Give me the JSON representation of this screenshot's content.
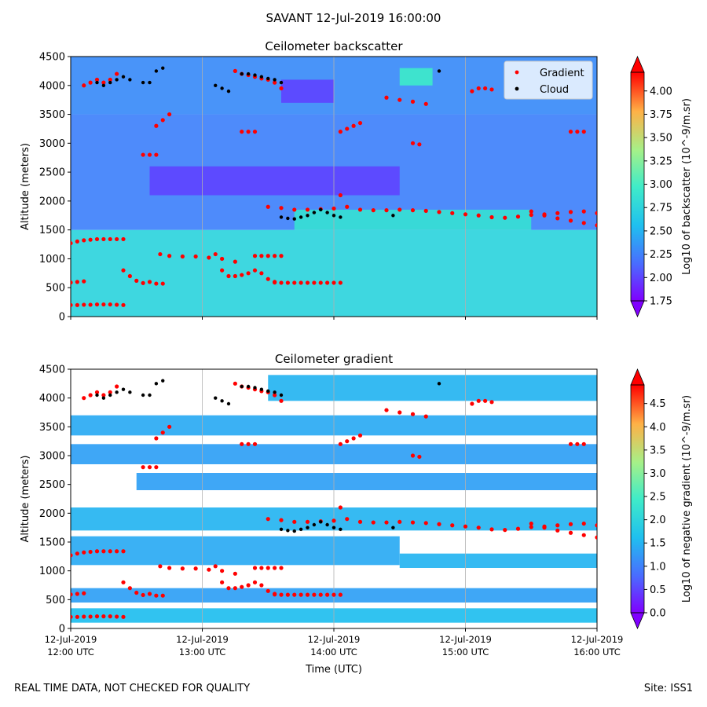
{
  "figure": {
    "suptitle": "SAVANT 12-Jul-2019 16:00:00",
    "footer_left": "REAL TIME DATA, NOT CHECKED FOR QUALITY",
    "footer_right": "Site: ISS1"
  },
  "colors": {
    "gradient_marker": "#ff0000",
    "cloud_marker": "#000000",
    "gridline": "#b0b0b0"
  },
  "chart_data": [
    {
      "type": "heatmap",
      "title": "Ceilometer backscatter",
      "xlabel": "",
      "ylabel": "Altitude (meters)",
      "xlim": [
        0,
        4
      ],
      "ylim": [
        0,
        4500
      ],
      "x_ticks": [
        0,
        1,
        2,
        3,
        4
      ],
      "x_tick_labels": [],
      "y_ticks": [
        0,
        500,
        1000,
        1500,
        2000,
        2500,
        3000,
        3500,
        4000,
        4500
      ],
      "y_tick_labels": [
        "0",
        "500",
        "1000",
        "1500",
        "2000",
        "2500",
        "3000",
        "3500",
        "4000",
        "4500"
      ],
      "grid": "vertical",
      "colorbar": {
        "label": "Log10 of backscatter (10^-9/m.sr)",
        "range": [
          1.75,
          4.2
        ],
        "ticks": [
          1.75,
          2.0,
          2.25,
          2.5,
          2.75,
          3.0,
          3.25,
          3.5,
          3.75,
          4.0
        ],
        "tick_labels": [
          "1.75",
          "2.00",
          "2.25",
          "2.50",
          "2.75",
          "3.00",
          "3.25",
          "3.50",
          "3.75",
          "4.00"
        ],
        "extend": "both"
      },
      "legend": {
        "placement": "top-right",
        "entries": [
          {
            "label": "Gradient",
            "color": "#ff0000"
          },
          {
            "label": "Cloud",
            "color": "#000000"
          }
        ]
      },
      "background_fields": [
        {
          "x": [
            0,
            4
          ],
          "y": [
            0,
            1500
          ],
          "value": 2.75
        },
        {
          "x": [
            0,
            4
          ],
          "y": [
            1500,
            3500
          ],
          "value": 2.25
        },
        {
          "x": [
            0,
            4
          ],
          "y": [
            3500,
            4500
          ],
          "value": 2.3
        },
        {
          "x": [
            2.5,
            2.75
          ],
          "y": [
            4000,
            4300
          ],
          "value": 2.95
        },
        {
          "x": [
            1.7,
            3.5
          ],
          "y": [
            1500,
            1850
          ],
          "value": 2.85
        },
        {
          "x": [
            0.6,
            2.5
          ],
          "y": [
            2100,
            2600
          ],
          "value": 2.0
        },
        {
          "x": [
            1.6,
            2.0
          ],
          "y": [
            3700,
            4100
          ],
          "value": 2.0
        }
      ],
      "series": [
        {
          "name": "Gradient",
          "kind": "points",
          "color": "#ff0000",
          "segments": [
            {
              "x": [
                0.0,
                0.05,
                0.1,
                0.15,
                0.2,
                0.25,
                0.3,
                0.35,
                0.4
              ],
              "y": [
                200,
                200,
                205,
                205,
                210,
                210,
                210,
                205,
                200
              ]
            },
            {
              "x": [
                0.0,
                0.05,
                0.1
              ],
              "y": [
                590,
                600,
                610
              ]
            },
            {
              "x": [
                0.0,
                0.05,
                0.1,
                0.15,
                0.2,
                0.25,
                0.3,
                0.35,
                0.4
              ],
              "y": [
                1270,
                1300,
                1320,
                1330,
                1340,
                1340,
                1340,
                1340,
                1340
              ]
            },
            {
              "x": [
                0.4,
                0.45,
                0.5,
                0.55,
                0.6,
                0.65,
                0.7
              ],
              "y": [
                800,
                700,
                620,
                580,
                600,
                570,
                570
              ]
            },
            {
              "x": [
                0.68,
                0.75,
                0.85,
                0.95,
                1.05,
                1.15,
                1.25
              ],
              "y": [
                1080,
                1050,
                1040,
                1040,
                1020,
                1000,
                950
              ]
            },
            {
              "x": [
                1.1,
                1.15,
                1.2,
                1.25,
                1.3,
                1.35,
                1.4,
                1.45,
                1.5,
                1.55
              ],
              "y": [
                1080,
                800,
                700,
                700,
                720,
                750,
                800,
                750,
                650,
                600
              ]
            },
            {
              "x": [
                1.55,
                1.6,
                1.65,
                1.7,
                1.75,
                1.8,
                1.85,
                1.9,
                1.95,
                2.0,
                2.05
              ],
              "y": [
                590,
                585,
                585,
                585,
                585,
                585,
                585,
                585,
                585,
                585,
                585
              ]
            },
            {
              "x": [
                1.4,
                1.45,
                1.5,
                1.55,
                1.6
              ],
              "y": [
                1050,
                1050,
                1050,
                1050,
                1050
              ]
            },
            {
              "x": [
                1.3,
                1.35,
                1.4
              ],
              "y": [
                3200,
                3200,
                3200
              ]
            },
            {
              "x": [
                0.55,
                0.6,
                0.65
              ],
              "y": [
                2800,
                2800,
                2800
              ]
            },
            {
              "x": [
                0.65,
                0.7,
                0.75
              ],
              "y": [
                3300,
                3400,
                3500
              ]
            },
            {
              "x": [
                1.5,
                1.6,
                1.7,
                1.8,
                1.9,
                2.0,
                2.05,
                2.1,
                2.2,
                2.3,
                2.4,
                2.5,
                2.6,
                2.7,
                2.8,
                2.9,
                3.0,
                3.1,
                3.2,
                3.3,
                3.4,
                3.5,
                3.6,
                3.7,
                3.8,
                3.9,
                4.0
              ],
              "y": [
                1900,
                1880,
                1850,
                1850,
                1860,
                1870,
                2100,
                1900,
                1850,
                1840,
                1840,
                1850,
                1840,
                1830,
                1810,
                1790,
                1770,
                1750,
                1720,
                1710,
                1730,
                1760,
                1770,
                1790,
                1810,
                1820,
                1790
              ]
            },
            {
              "x": [
                3.5,
                3.6,
                3.7,
                3.8,
                3.9,
                4.0
              ],
              "y": [
                1820,
                1750,
                1700,
                1660,
                1620,
                1580
              ]
            },
            {
              "x": [
                2.05,
                2.1,
                2.15,
                2.2
              ],
              "y": [
                3200,
                3250,
                3300,
                3350
              ]
            },
            {
              "x": [
                2.4,
                2.5,
                2.6,
                2.7
              ],
              "y": [
                3790,
                3750,
                3720,
                3680
              ]
            },
            {
              "x": [
                2.6,
                2.65
              ],
              "y": [
                3000,
                2980
              ]
            },
            {
              "x": [
                3.05,
                3.1,
                3.15,
                3.2
              ],
              "y": [
                3900,
                3950,
                3950,
                3930
              ]
            },
            {
              "x": [
                3.8,
                3.85,
                3.9
              ],
              "y": [
                3200,
                3200,
                3200
              ]
            },
            {
              "x": [
                0.1,
                0.15,
                0.2,
                0.25,
                0.3,
                0.35
              ],
              "y": [
                4000,
                4050,
                4100,
                4050,
                4100,
                4200
              ]
            },
            {
              "x": [
                1.25,
                1.3,
                1.35,
                1.4,
                1.45,
                1.5,
                1.55,
                1.6
              ],
              "y": [
                4250,
                4200,
                4180,
                4150,
                4120,
                4100,
                4050,
                3950
              ]
            }
          ]
        },
        {
          "name": "Cloud",
          "kind": "points",
          "color": "#000000",
          "segments": [
            {
              "x": [
                0.2,
                0.25,
                0.3,
                0.35,
                0.4,
                0.45
              ],
              "y": [
                4050,
                4000,
                4050,
                4100,
                4150,
                4100
              ]
            },
            {
              "x": [
                0.55,
                0.6,
                0.65,
                0.7
              ],
              "y": [
                4050,
                4050,
                4250,
                4300
              ]
            },
            {
              "x": [
                1.1,
                1.15,
                1.2
              ],
              "y": [
                4000,
                3950,
                3900
              ]
            },
            {
              "x": [
                1.3,
                1.35,
                1.4,
                1.45,
                1.5,
                1.55,
                1.6
              ],
              "y": [
                4200,
                4200,
                4180,
                4150,
                4120,
                4100,
                4050
              ]
            },
            {
              "x": [
                1.6,
                1.65,
                1.7,
                1.75,
                1.8,
                1.85,
                1.9,
                1.95,
                2.0,
                2.05
              ],
              "y": [
                1720,
                1700,
                1690,
                1720,
                1750,
                1800,
                1850,
                1800,
                1750,
                1720
              ]
            },
            {
              "x": [
                2.45
              ],
              "y": [
                1750
              ]
            },
            {
              "x": [
                2.8
              ],
              "y": [
                4250
              ]
            }
          ]
        }
      ]
    },
    {
      "type": "heatmap",
      "title": "Ceilometer gradient",
      "xlabel": "Time (UTC)",
      "ylabel": "Altitude (meters)",
      "xlim": [
        0,
        4
      ],
      "ylim": [
        0,
        4500
      ],
      "x_ticks": [
        0,
        1,
        2,
        3,
        4
      ],
      "x_tick_labels": [
        [
          "12-Jul-2019",
          "12:00 UTC"
        ],
        [
          "12-Jul-2019",
          "13:00 UTC"
        ],
        [
          "12-Jul-2019",
          "14:00 UTC"
        ],
        [
          "12-Jul-2019",
          "15:00 UTC"
        ],
        [
          "12-Jul-2019",
          "16:00 UTC"
        ]
      ],
      "y_ticks": [
        0,
        500,
        1000,
        1500,
        2000,
        2500,
        3000,
        3500,
        4000,
        4500
      ],
      "y_tick_labels": [
        "0",
        "500",
        "1000",
        "1500",
        "2000",
        "2500",
        "3000",
        "3500",
        "4000",
        "4500"
      ],
      "grid": "vertical",
      "colorbar": {
        "label": "Log10 of negative gradient (10^-9/m.sr)",
        "range": [
          0.0,
          4.9
        ],
        "ticks": [
          0.0,
          0.5,
          1.0,
          1.5,
          2.0,
          2.5,
          3.0,
          3.5,
          4.0,
          4.5
        ],
        "tick_labels": [
          "0.0",
          "0.5",
          "1.0",
          "1.5",
          "2.0",
          "2.5",
          "3.0",
          "3.5",
          "4.0",
          "4.5"
        ],
        "extend": "both"
      },
      "background_fields": [
        {
          "x": [
            0,
            4
          ],
          "y": [
            100,
            350
          ],
          "value": 1.6
        },
        {
          "x": [
            0,
            4
          ],
          "y": [
            450,
            700
          ],
          "value": 1.3
        },
        {
          "x": [
            0,
            2.5
          ],
          "y": [
            1100,
            1600
          ],
          "value": 1.4
        },
        {
          "x": [
            2.5,
            4
          ],
          "y": [
            1050,
            1300
          ],
          "value": 1.5
        },
        {
          "x": [
            0,
            4
          ],
          "y": [
            1700,
            2100
          ],
          "value": 1.5
        },
        {
          "x": [
            0.5,
            4
          ],
          "y": [
            2400,
            2700
          ],
          "value": 1.3
        },
        {
          "x": [
            0,
            4
          ],
          "y": [
            2850,
            3200
          ],
          "value": 1.3
        },
        {
          "x": [
            0,
            4
          ],
          "y": [
            3350,
            3700
          ],
          "value": 1.4
        },
        {
          "x": [
            1.5,
            4
          ],
          "y": [
            3950,
            4400
          ],
          "value": 1.5
        }
      ],
      "series": [
        {
          "name": "Gradient",
          "kind": "points",
          "color": "#ff0000",
          "same_as_panel": 0
        },
        {
          "name": "Cloud",
          "kind": "points",
          "color": "#000000",
          "same_as_panel": 0
        }
      ]
    }
  ]
}
